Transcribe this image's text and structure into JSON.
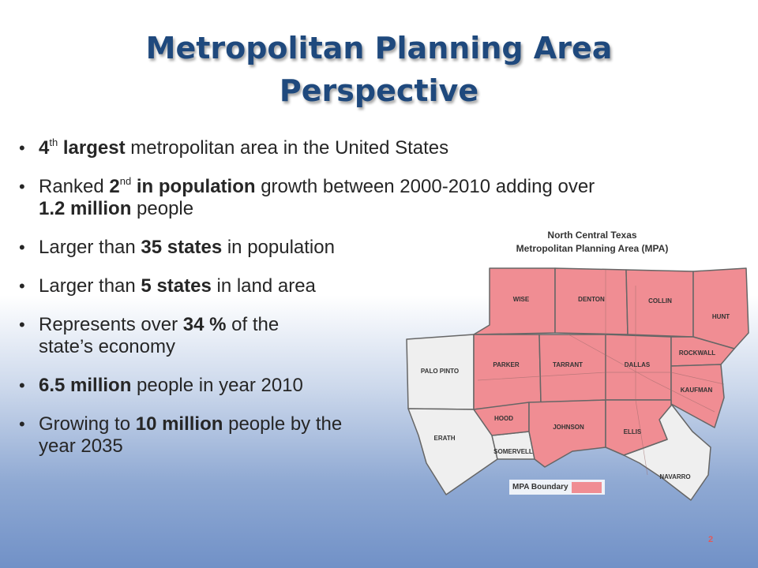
{
  "slide": {
    "title_line1": "Metropolitan Planning Area",
    "title_line2": "Perspective",
    "page_number": "2"
  },
  "bullets": [
    {
      "b0": "4",
      "s0": "th",
      "b1": "largest",
      "t1": " metropolitan area in the United States"
    },
    {
      "t0": "Ranked ",
      "b0": "2",
      "s0": "nd",
      "b1": " in population",
      "t1": " growth between 2000-2010 adding over ",
      "b2": "1.2 million",
      "t2": " people"
    },
    {
      "t0": "Larger than ",
      "b0": "35 states",
      "t1": " in population"
    },
    {
      "t0": "Larger than ",
      "b0": "5 states",
      "t1": " in land area"
    },
    {
      "t0": "Represents over ",
      "b0": "34 %",
      "t1": " of the state’s economy"
    },
    {
      "b0": "6.5 million",
      "t1": " people in year 2010"
    },
    {
      "t0": "Growing to ",
      "b0": "10 million",
      "t1": " people by the year 2035"
    }
  ],
  "map": {
    "title_line1": "North Central Texas",
    "title_line2": "Metropolitan Planning Area (MPA)",
    "legend_label": "MPA Boundary",
    "mpa_color": "#f08d93",
    "outside_color": "#efefef",
    "counties_mpa": [
      "WISE",
      "DENTON",
      "COLLIN",
      "HUNT",
      "PARKER",
      "TARRANT",
      "DALLAS",
      "ROCKWALL",
      "KAUFMAN",
      "HOOD",
      "JOHNSON",
      "ELLIS"
    ],
    "counties_outside": [
      "PALO PINTO",
      "ERATH",
      "SOMERVELL",
      "NAVARRO"
    ]
  }
}
